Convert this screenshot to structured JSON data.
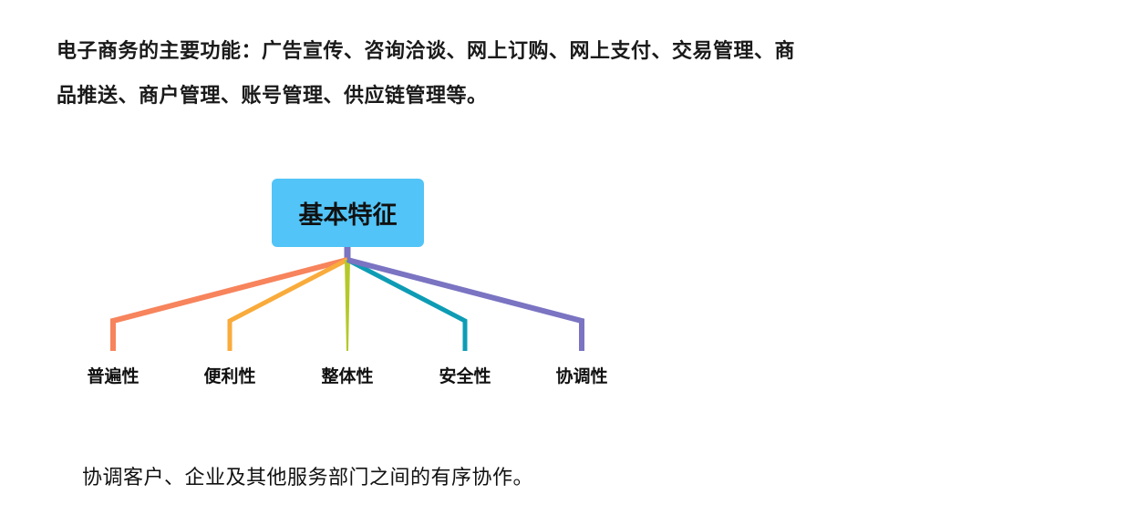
{
  "intro": {
    "line1": "电子商务的主要功能：广告宣传、咨询洽谈、网上订购、网上支付、交易管理、商",
    "line2": "品推送、商户管理、账号管理、供应链管理等。"
  },
  "diagram": {
    "root": "基本特征",
    "root_color": "#52c4f7",
    "branches": [
      {
        "label": "普遍性",
        "color": "#f7845c"
      },
      {
        "label": "便利性",
        "color": "#f9ab3b"
      },
      {
        "label": "整体性",
        "color": "#b5c82a"
      },
      {
        "label": "安全性",
        "color": "#0e9cb5"
      },
      {
        "label": "协调性",
        "color": "#7a74c2"
      }
    ]
  },
  "caption": "协调客户、企业及其他服务部门之间的有序协作。"
}
